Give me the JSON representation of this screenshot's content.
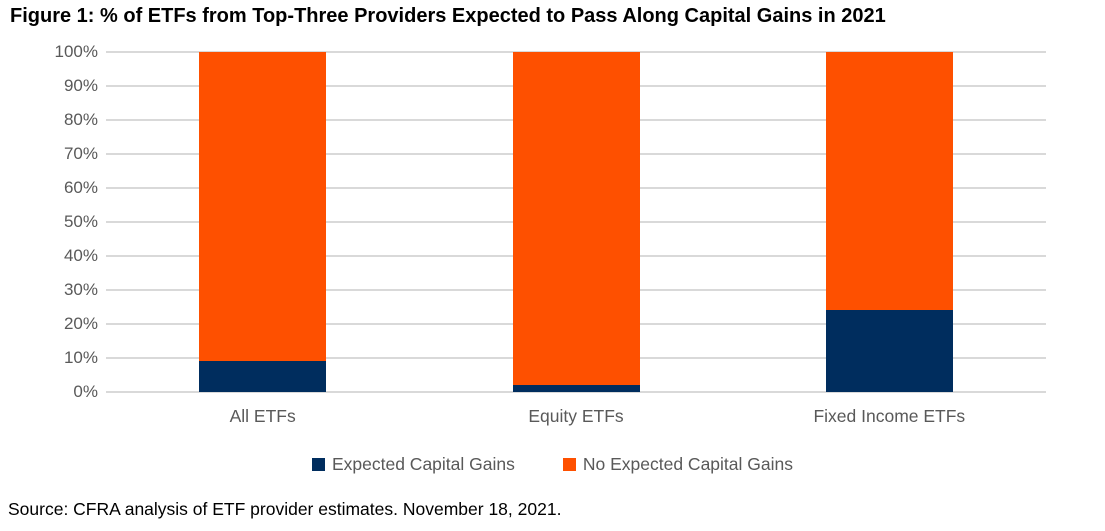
{
  "header": {
    "title": "Figure 1: % of ETFs from Top-Three Providers Expected to Pass Along Capital Gains in 2021"
  },
  "chart_data": {
    "type": "bar",
    "stacked": true,
    "title": "Figure 1: % of ETFs from Top-Three Providers Expected to Pass Along Capital Gains in 2021",
    "categories": [
      "All ETFs",
      "Equity ETFs",
      "Fixed Income ETFs"
    ],
    "series": [
      {
        "name": "Expected Capital Gains",
        "color": "#002d5e",
        "values": [
          9,
          2,
          24
        ]
      },
      {
        "name": "No Expected Capital Gains",
        "color": "#fe5000",
        "values": [
          91,
          98,
          76
        ]
      }
    ],
    "xlabel": "",
    "ylabel": "",
    "ylim": [
      0,
      100
    ],
    "ytick_step": 10,
    "ytick_suffix": "%",
    "grid": "horizontal",
    "gridline_color": "#d9d9d9",
    "axis_text_color": "#595959",
    "legend_position": "bottom"
  },
  "footer": {
    "source": "Source: CFRA analysis of ETF provider estimates. November 18, 2021."
  }
}
